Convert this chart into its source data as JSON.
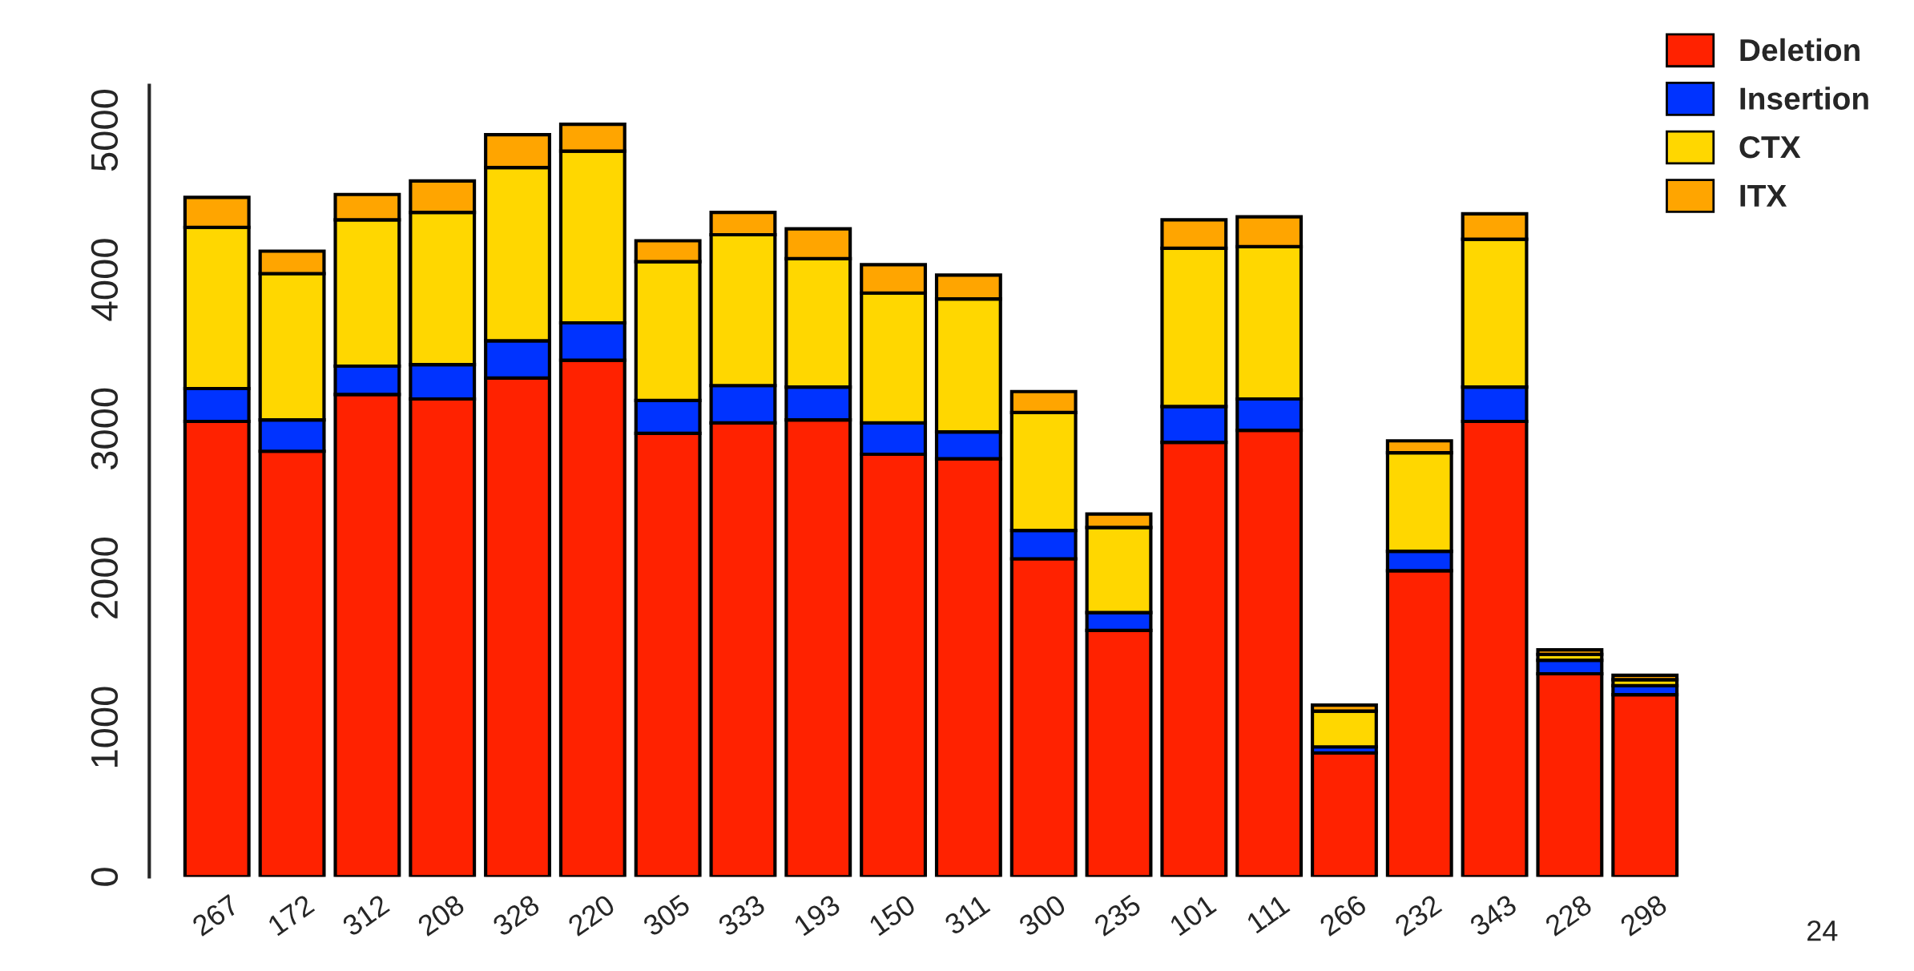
{
  "chart_data": {
    "type": "bar",
    "stacked": true,
    "categories": [
      "267",
      "172",
      "312",
      "208",
      "328",
      "220",
      "305",
      "333",
      "193",
      "150",
      "311",
      "300",
      "235",
      "101",
      "111",
      "266",
      "232",
      "343",
      "228",
      "298"
    ],
    "series": [
      {
        "name": "Deletion",
        "color": "#ff2200",
        "values": [
          3050,
          2850,
          3230,
          3200,
          3340,
          3460,
          2970,
          3040,
          3060,
          2830,
          2800,
          2130,
          1650,
          2910,
          2990,
          830,
          2050,
          3050,
          1360,
          1220
        ]
      },
      {
        "name": "Insertion",
        "color": "#0033ff",
        "values": [
          220,
          210,
          190,
          230,
          250,
          250,
          220,
          250,
          220,
          210,
          180,
          190,
          120,
          240,
          210,
          40,
          130,
          230,
          90,
          60
        ]
      },
      {
        "name": "CTX",
        "color": "#ffd700",
        "values": [
          1080,
          980,
          980,
          1020,
          1160,
          1150,
          930,
          1010,
          860,
          870,
          890,
          790,
          570,
          1060,
          1020,
          240,
          660,
          990,
          40,
          40
        ]
      },
      {
        "name": "ITX",
        "color": "#ffa500",
        "values": [
          200,
          150,
          170,
          210,
          220,
          180,
          140,
          150,
          200,
          190,
          160,
          140,
          90,
          190,
          200,
          40,
          80,
          170,
          30,
          30
        ]
      }
    ],
    "ylim": [
      0,
      5300
    ],
    "yticks": [
      0,
      1000,
      2000,
      3000,
      4000,
      5000
    ],
    "grid": false,
    "legend": "top right",
    "annotations": [
      "24"
    ]
  }
}
